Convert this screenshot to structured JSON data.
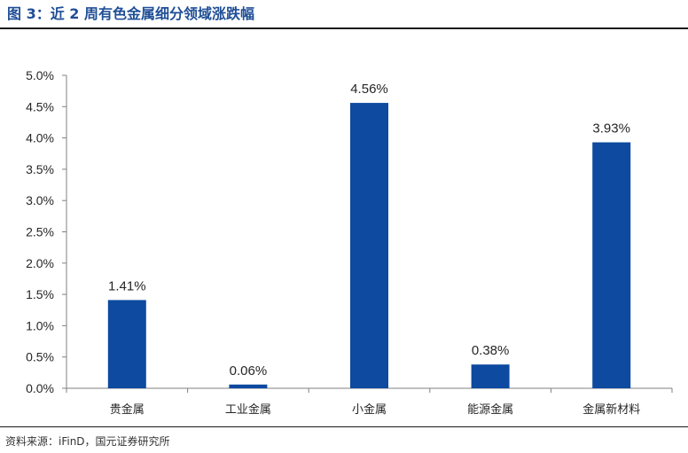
{
  "figure": {
    "title": "图 3：近 2 周有色金属细分领域涨跌幅",
    "source": "资料来源：iFinD，国元证券研究所"
  },
  "colors": {
    "bar": "#0d4aa0",
    "title": "#1f4e96",
    "axis": "#808080"
  },
  "chart_data": {
    "type": "bar",
    "categories": [
      "贵金属",
      "工业金属",
      "小金属",
      "能源金属",
      "金属新材料"
    ],
    "values": [
      1.41,
      0.06,
      4.56,
      0.38,
      3.93
    ],
    "data_labels": [
      "1.41%",
      "0.06%",
      "4.56%",
      "0.38%",
      "3.93%"
    ],
    "yticks": [
      "0.0%",
      "0.5%",
      "1.0%",
      "1.5%",
      "2.0%",
      "2.5%",
      "3.0%",
      "3.5%",
      "4.0%",
      "4.5%",
      "5.0%"
    ],
    "ylim": [
      0,
      5
    ],
    "unit": "%",
    "grid": false,
    "legend": "none",
    "title": "",
    "xlabel": "",
    "ylabel": ""
  }
}
